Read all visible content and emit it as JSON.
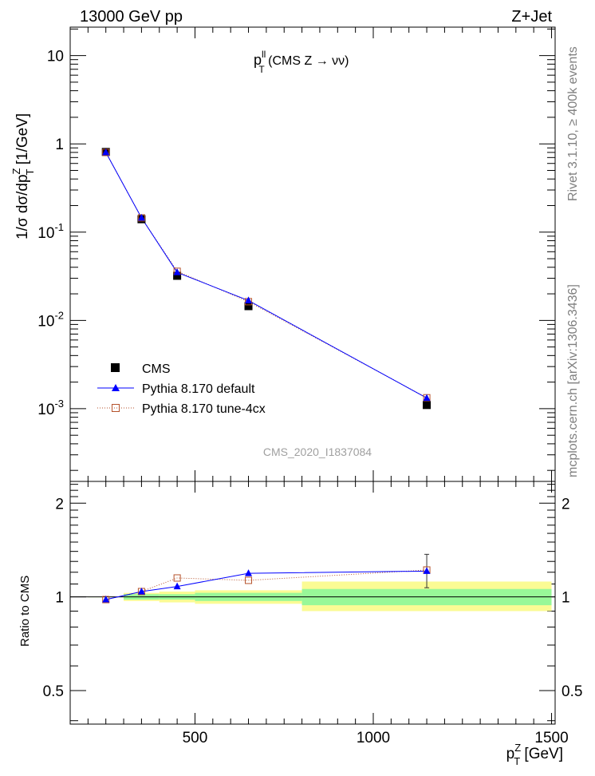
{
  "header": {
    "left": "13000 GeV pp",
    "right": "Z+Jet"
  },
  "plot_title": {
    "base": "p",
    "sup": "ll",
    "sub": "T",
    "rest": " (CMS Z → νν)"
  },
  "watermark": "CMS_2020_I1837084",
  "side_labels": {
    "rivet": "Rivet 3.1.10, ≥ 400k events",
    "mcplots": "mcplots.cern.ch [arXiv:1306.3436]"
  },
  "axis_labels": {
    "main_y": "1/σ dσ/dp",
    "main_y_sup": "Z",
    "main_y_sub": "T",
    "main_y_unit": " [1/GeV]",
    "ratio_y": "Ratio to CMS",
    "x_base": "p",
    "x_sup": "Z",
    "x_sub": "T",
    "x_unit": " [GeV]"
  },
  "tick_labels": {
    "x": [
      "500",
      "1000",
      "1500"
    ],
    "main_y": [
      {
        "base": "10",
        "exp": "-3"
      },
      {
        "base": "10",
        "exp": "-2"
      },
      {
        "base": "10",
        "exp": "-1"
      },
      {
        "base": "1",
        "exp": ""
      },
      {
        "base": "10",
        "exp": ""
      }
    ],
    "ratio_y": [
      "0.5",
      "1",
      "2"
    ]
  },
  "legend": [
    "CMS",
    "Pythia 8.170 default",
    "Pythia 8.170 tune-4cx"
  ],
  "colors": {
    "cms": "#000000",
    "default": "#0000ff",
    "tune": "#b5522b",
    "band_inner": "#98f898",
    "band_outer": "#fbfb94",
    "ref_line": "#000000"
  },
  "chart_data": {
    "type": "scatter",
    "x_edges": [
      200,
      300,
      400,
      500,
      800,
      1500
    ],
    "x": [
      250,
      350,
      450,
      650,
      1150
    ],
    "xlim": [
      150,
      1510
    ],
    "ylim": [
      0.00015,
      21
    ],
    "yscale": "log",
    "ratio_ylim": [
      0.39,
      2.35
    ],
    "ratio_yscale": "log",
    "series": [
      {
        "name": "CMS",
        "values": [
          0.81,
          0.14,
          0.032,
          0.0145,
          0.0011
        ]
      },
      {
        "name": "Pythia 8.170 default",
        "values": [
          0.8,
          0.145,
          0.035,
          0.0168,
          0.00132
        ],
        "ratio": [
          0.98,
          1.04,
          1.08,
          1.19,
          1.21
        ]
      },
      {
        "name": "Pythia 8.170 tune-4cx",
        "values": [
          0.8,
          0.145,
          0.036,
          0.0163,
          0.00133
        ],
        "ratio": [
          0.98,
          1.04,
          1.15,
          1.13,
          1.22
        ],
        "ratio_err": [
          0.005,
          0.01,
          0.01,
          0.01,
          0.15
        ]
      }
    ],
    "uncertainty_bands": {
      "x_edges": [
        200,
        300,
        400,
        500,
        800,
        1500
      ],
      "inner": [
        [
          1.0,
          1.0
        ],
        [
          0.98,
          1.02
        ],
        [
          0.98,
          1.02
        ],
        [
          0.97,
          1.03
        ],
        [
          0.94,
          1.06
        ]
      ],
      "outer": [
        [
          1.0,
          1.0
        ],
        [
          0.97,
          1.03
        ],
        [
          0.96,
          1.04
        ],
        [
          0.95,
          1.05
        ],
        [
          0.9,
          1.12
        ]
      ]
    },
    "legend_position": "bottom-left"
  }
}
